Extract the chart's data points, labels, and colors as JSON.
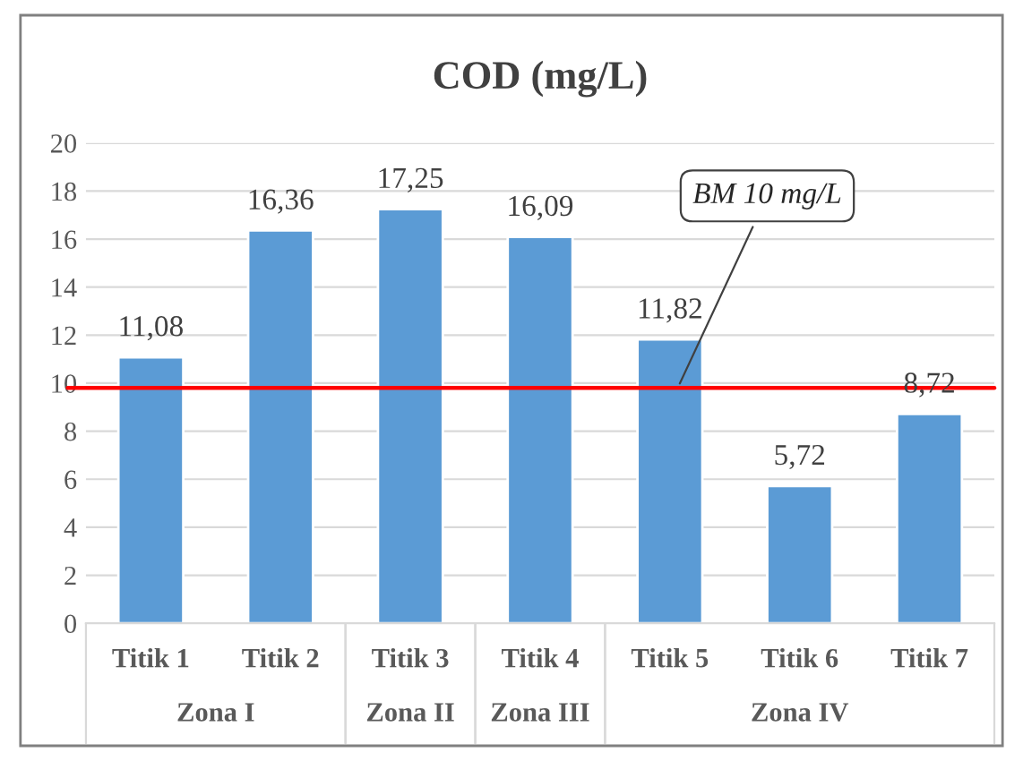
{
  "chart_data": {
    "type": "bar",
    "title": "COD (mg/L)",
    "categories": [
      "Titik 1",
      "Titik 2",
      "Titik 3",
      "Titik 4",
      "Titik 5",
      "Titik 6",
      "Titik 7"
    ],
    "values": [
      11.08,
      16.36,
      17.25,
      16.09,
      11.82,
      5.72,
      8.72
    ],
    "value_labels": [
      "11,08",
      "16,36",
      "17,25",
      "16,09",
      "11,82",
      "5,72",
      "8,72"
    ],
    "color": "#5b9bd5",
    "ylim": [
      0,
      20
    ],
    "yticks": [
      0,
      2,
      4,
      6,
      8,
      10,
      12,
      14,
      16,
      18,
      20
    ],
    "grid": "y",
    "ref_lines": [
      {
        "axis": "y",
        "value": 9.8,
        "label": "BM 10 mg/L",
        "color": "#ff0000"
      }
    ],
    "annotations": [
      "Zona I",
      "Zona II",
      "Zona III",
      "Zona IV"
    ]
  }
}
